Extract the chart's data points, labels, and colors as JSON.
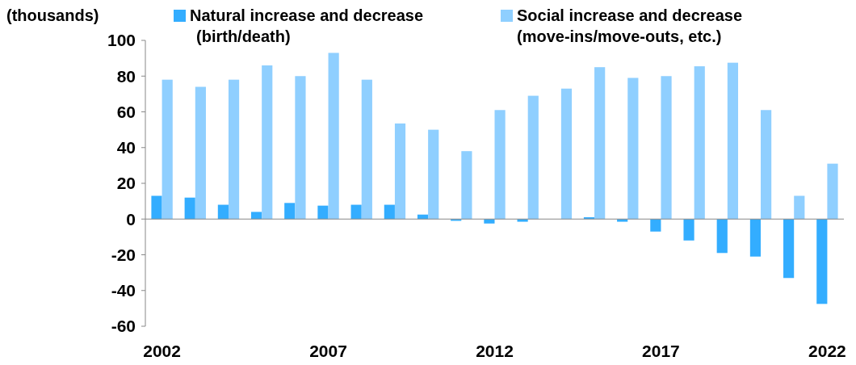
{
  "chart_data": {
    "type": "bar",
    "ylabel": "(thousands)",
    "categories": [
      "2002",
      null,
      null,
      null,
      null,
      "2007",
      null,
      null,
      null,
      null,
      "2012",
      null,
      null,
      null,
      null,
      "2017",
      null,
      null,
      null,
      null,
      "2022"
    ],
    "series": [
      {
        "name": "Natural increase and decrease (birth/death)",
        "color": "#33adff",
        "values": [
          13,
          12,
          8,
          4,
          9,
          7.5,
          8,
          8,
          2.5,
          -1,
          -2.5,
          -1.5,
          0,
          1,
          -1.5,
          -7,
          -12,
          -19,
          -21,
          -33,
          -47.5
        ]
      },
      {
        "name": "Social increase and decrease (move-ins/move-outs, etc.)",
        "color": "#8fcfff",
        "values": [
          78,
          74,
          78,
          86,
          80,
          93,
          78,
          53.5,
          50,
          38,
          61,
          69,
          73,
          85,
          79,
          80,
          85.5,
          87.5,
          61,
          13,
          31
        ]
      }
    ],
    "ylim": [
      -60,
      100
    ],
    "yticks": [
      -60,
      -40,
      -20,
      0,
      20,
      40,
      60,
      80,
      100
    ],
    "legend": "top"
  }
}
